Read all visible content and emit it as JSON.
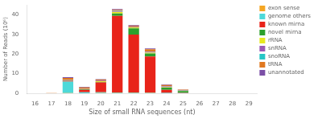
{
  "chart_data": {
    "type": "bar",
    "stacked": true,
    "xlabel": "Size of small RNA sequences (nt)",
    "ylabel": "Number of Reads (10⁶)",
    "categories": [
      "16",
      "17",
      "18",
      "19",
      "20",
      "21",
      "22",
      "23",
      "24",
      "25",
      "26",
      "27",
      "28",
      "29"
    ],
    "series": [
      {
        "name": "exon sense",
        "color": "#f5a623",
        "values": [
          0,
          0,
          0.1,
          0.05,
          0.1,
          0.15,
          0.15,
          0.1,
          0.05,
          0.05,
          0,
          0,
          0,
          0
        ]
      },
      {
        "name": "genome others",
        "color": "#4dd9d9",
        "values": [
          0,
          0,
          5.8,
          0.5,
          0.4,
          0.3,
          0.25,
          0.2,
          0.15,
          0.1,
          0,
          0,
          0,
          0
        ]
      },
      {
        "name": "known mirna",
        "color": "#e8241a",
        "values": [
          0,
          0,
          0.5,
          1.2,
          5.0,
          39.0,
          29.5,
          18.5,
          1.5,
          0.15,
          0,
          0,
          0,
          0
        ]
      },
      {
        "name": "novel mirna",
        "color": "#2ca02c",
        "values": [
          0,
          0,
          0.15,
          0.25,
          0.25,
          1.2,
          3.2,
          1.5,
          1.2,
          0.8,
          0,
          0,
          0,
          0
        ]
      },
      {
        "name": "rRNA",
        "color": "#e8e820",
        "values": [
          0,
          0,
          0.15,
          0.15,
          0.4,
          0.8,
          0.5,
          0.4,
          0.2,
          0.1,
          0,
          0,
          0,
          0
        ]
      },
      {
        "name": "snRNA",
        "color": "#9b59b6",
        "values": [
          0,
          0,
          0.2,
          0.2,
          0.3,
          0.5,
          0.3,
          0.4,
          0.4,
          0.15,
          0,
          0,
          0,
          0
        ]
      },
      {
        "name": "snoRNA",
        "color": "#26c6c6",
        "values": [
          0,
          0,
          0.05,
          0.05,
          0.1,
          0.15,
          0.1,
          0.1,
          0.05,
          0.05,
          0,
          0,
          0,
          0
        ]
      },
      {
        "name": "tRNA",
        "color": "#e07820",
        "values": [
          0,
          0.1,
          0.8,
          0.6,
          0.4,
          0.4,
          0.4,
          1.2,
          0.7,
          0.4,
          0.05,
          0.03,
          0.03,
          0.03
        ]
      },
      {
        "name": "unannotated",
        "color": "#7b4fa6",
        "values": [
          0.05,
          0.05,
          0.4,
          0.25,
          0.2,
          0.45,
          0.35,
          0.45,
          0.25,
          0.15,
          0,
          0,
          0,
          0
        ]
      }
    ],
    "ylim": [
      0,
      45
    ],
    "yticks": [
      0,
      10,
      20,
      30,
      40
    ],
    "grid": false,
    "legend": "upper right"
  }
}
